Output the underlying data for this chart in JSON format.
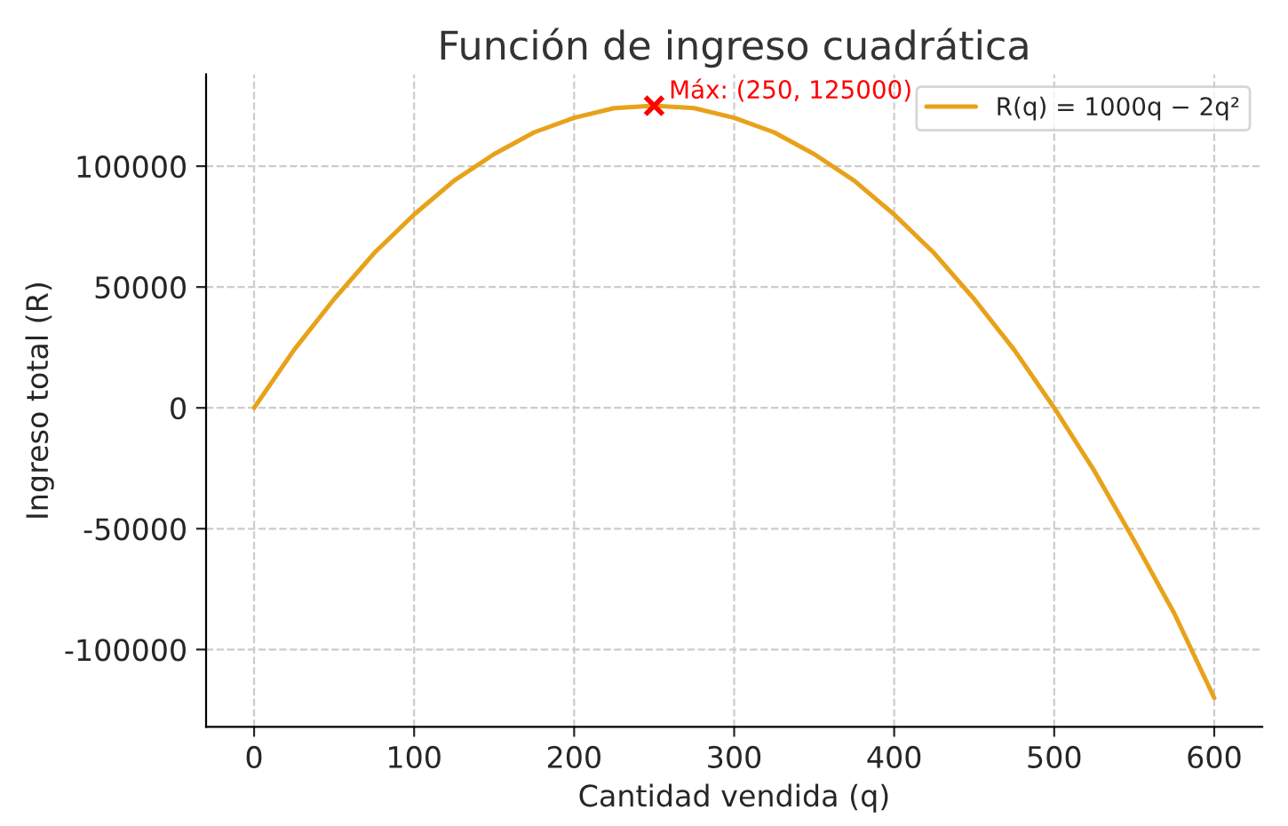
{
  "chart_data": {
    "type": "line",
    "title": "Función de ingreso cuadrática",
    "xlabel": "Cantidad vendida (q)",
    "ylabel": "Ingreso total (R)",
    "xlim": [
      -30,
      630
    ],
    "ylim": [
      -132000,
      138000
    ],
    "xticks": [
      0,
      100,
      200,
      300,
      400,
      500,
      600
    ],
    "yticks": [
      -100000,
      -50000,
      0,
      50000,
      100000
    ],
    "grid": true,
    "legend": "top right",
    "line_style": "solid",
    "series": [
      {
        "name": "R(q) = 1000q − 2q²",
        "color": "#e8a21a",
        "marker": "none",
        "x": [
          0,
          25,
          50,
          75,
          100,
          125,
          150,
          175,
          200,
          225,
          250,
          275,
          300,
          325,
          350,
          375,
          400,
          425,
          450,
          475,
          500,
          525,
          550,
          575,
          600
        ],
        "values": [
          0,
          24000,
          45000,
          64000,
          80000,
          94000,
          105000,
          114000,
          120000,
          124000,
          125000,
          124000,
          120000,
          114000,
          105000,
          94000,
          80000,
          64000,
          45000,
          24000,
          0,
          -26000,
          -55000,
          -85000,
          -120000
        ]
      },
      {
        "type": "scatter",
        "color": "#ff0000",
        "marker": "cross",
        "x": [
          250
        ],
        "values": [
          125000
        ]
      }
    ],
    "annotations": [
      {
        "text": "Máx: (250, 125000)",
        "x": 250,
        "y": 125000
      }
    ]
  }
}
